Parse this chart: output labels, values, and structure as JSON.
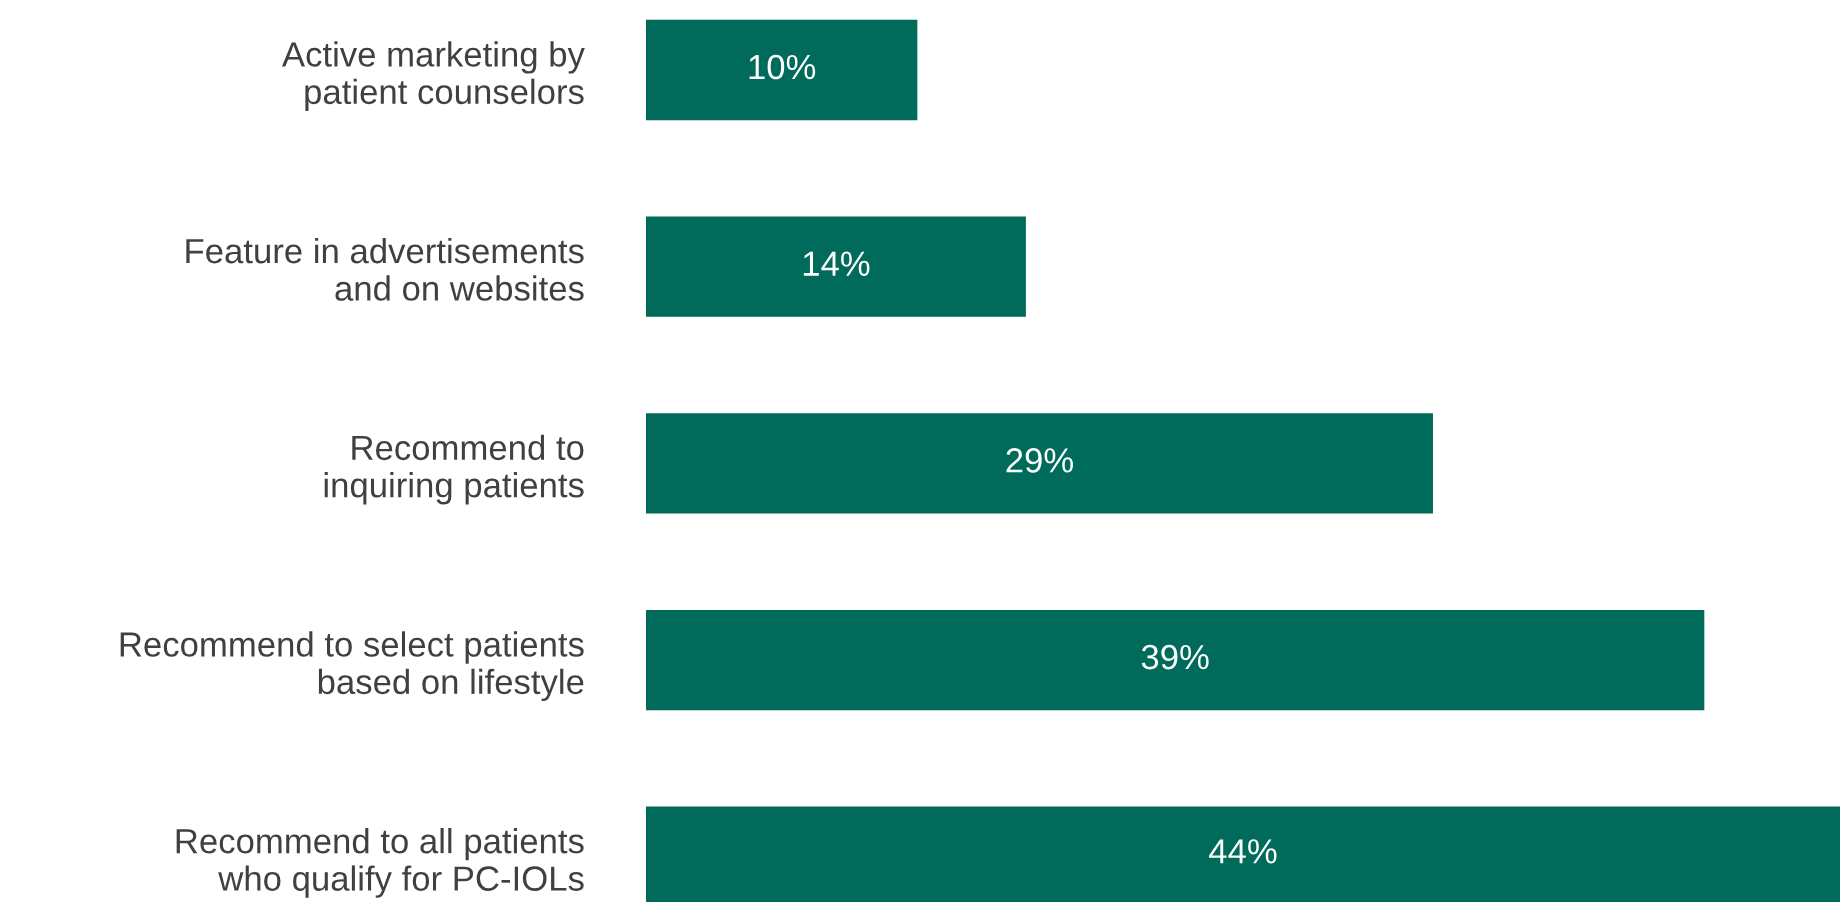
{
  "chart_data": {
    "type": "bar",
    "orientation": "horizontal",
    "categories": [
      "Active marketing by\npatient counselors",
      "Feature in advertisements\nand on websites",
      "Recommend to\ninquiring patients",
      "Recommend to select patients\nbased on lifestyle",
      "Recommend to all patients\nwho qualify for PC-IOLs"
    ],
    "values": [
      10,
      14,
      29,
      39,
      44
    ],
    "value_labels": [
      "10%",
      "14%",
      "29%",
      "39%",
      "44%"
    ],
    "color": "#006b5a",
    "grid": false,
    "legend": false
  }
}
